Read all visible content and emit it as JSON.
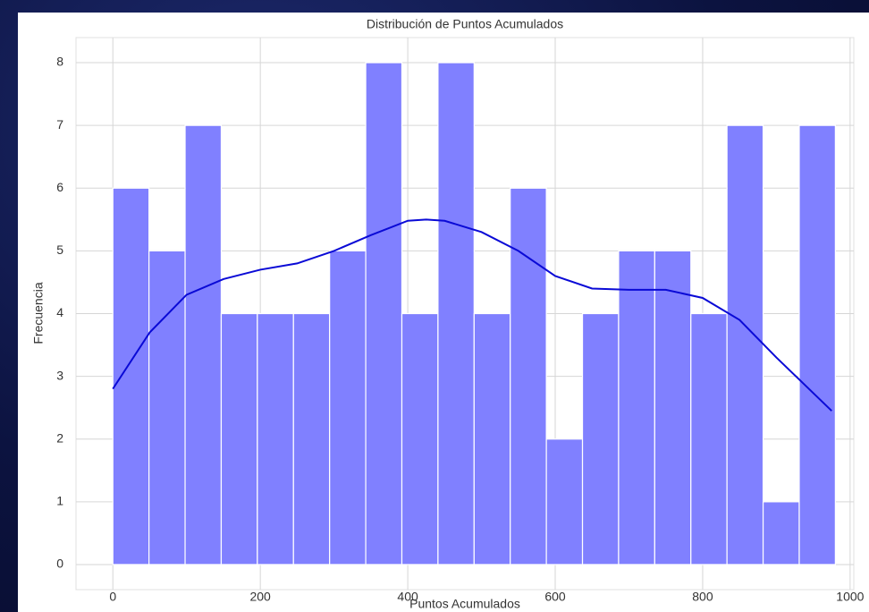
{
  "chart_data": {
    "type": "histogram",
    "title": "Distribución de Puntos Acumulados",
    "x_label": "Puntos Acumulados",
    "y_label": "Frecuencia",
    "bins": [
      0,
      49,
      98,
      147,
      196,
      245,
      294,
      343,
      392,
      441,
      490,
      539,
      588,
      637,
      686,
      735,
      784,
      833,
      882,
      931,
      980
    ],
    "values": [
      6,
      5,
      7,
      4,
      4,
      4,
      5,
      8,
      4,
      8,
      4,
      6,
      2,
      4,
      5,
      5,
      4,
      7,
      1,
      7
    ],
    "color": "#8080ff",
    "kde": {
      "color": "#0a0ad6",
      "x": [
        0,
        50,
        100,
        150,
        200,
        250,
        300,
        350,
        400,
        425,
        450,
        500,
        550,
        600,
        650,
        700,
        750,
        800,
        850,
        900,
        975
      ],
      "y": [
        2.8,
        3.7,
        4.3,
        4.55,
        4.7,
        4.8,
        5.0,
        5.25,
        5.48,
        5.5,
        5.48,
        5.3,
        5.0,
        4.6,
        4.4,
        4.38,
        4.38,
        4.25,
        3.9,
        3.3,
        2.45
      ]
    },
    "xlim": [
      -50,
      1005
    ],
    "ylim": [
      -0.4,
      8.4
    ],
    "xticks": [
      0,
      200,
      400,
      600,
      800,
      1000
    ],
    "yticks": [
      0,
      1,
      2,
      3,
      4,
      5,
      6,
      7,
      8
    ],
    "grid": true
  }
}
